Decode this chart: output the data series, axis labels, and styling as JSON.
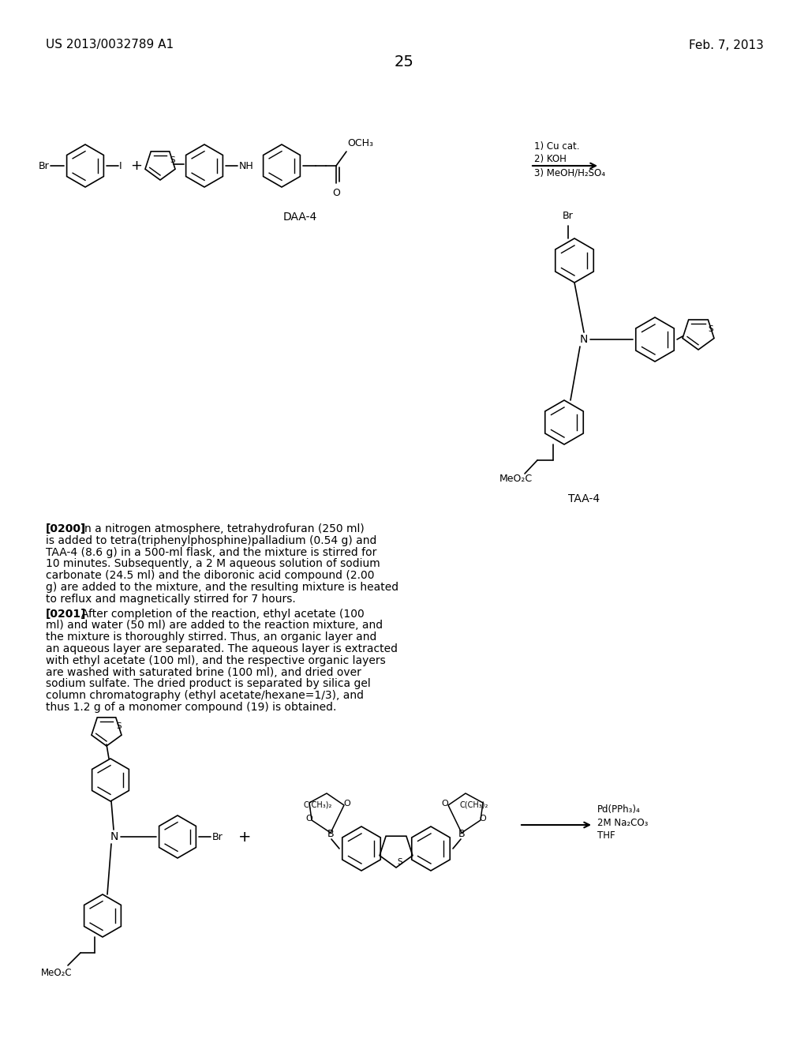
{
  "background_color": "#ffffff",
  "header_left": "US 2013/0032789 A1",
  "header_right": "Feb. 7, 2013",
  "page_number": "25",
  "reaction1_conditions": [
    "1) Cu cat.",
    "2) KOH",
    "3) MeOH/H₂SO₄"
  ],
  "reaction2_conditions": [
    "Pd(PPh₃)₄",
    "2M Na₂CO₃",
    "THF"
  ],
  "label_daa4": "DAA-4",
  "label_taa4": "TAA-4",
  "para0200_tag": "[0200]",
  "para0200_text": "In a nitrogen atmosphere, tetrahydrofuran (250 ml)\nis added to tetra(triphenylphosphine)palladium (0.54 g) and\nTAA-4 (8.6 g) in a 500-ml flask, and the mixture is stirred for\n10 minutes. Subsequently, a 2 M aqueous solution of sodium\ncarbonate (24.5 ml) and the diboronic acid compound (2.00\ng) are added to the mixture, and the resulting mixture is heated\nto reflux and magnetically stirred for 7 hours.",
  "para0201_tag": "[0201]",
  "para0201_text": "After completion of the reaction, ethyl acetate (100\nml) and water (50 ml) are added to the reaction mixture, and\nthe mixture is thoroughly stirred. Thus, an organic layer and\nan aqueous layer are separated. The aqueous layer is extracted\nwith ethyl acetate (100 ml), and the respective organic layers\nare washed with saturated brine (100 ml), and dried over\nsodium sulfate. The dried product is separated by silica gel\ncolumn chromatography (ethyl acetate/hexane=1/3), and\nthus 1.2 g of a monomer compound (19) is obtained.",
  "font_size_header": 11,
  "font_size_page_num": 14,
  "font_size_body": 10.0,
  "font_size_label": 10,
  "font_size_chem": 9,
  "font_size_reaction": 8.5
}
